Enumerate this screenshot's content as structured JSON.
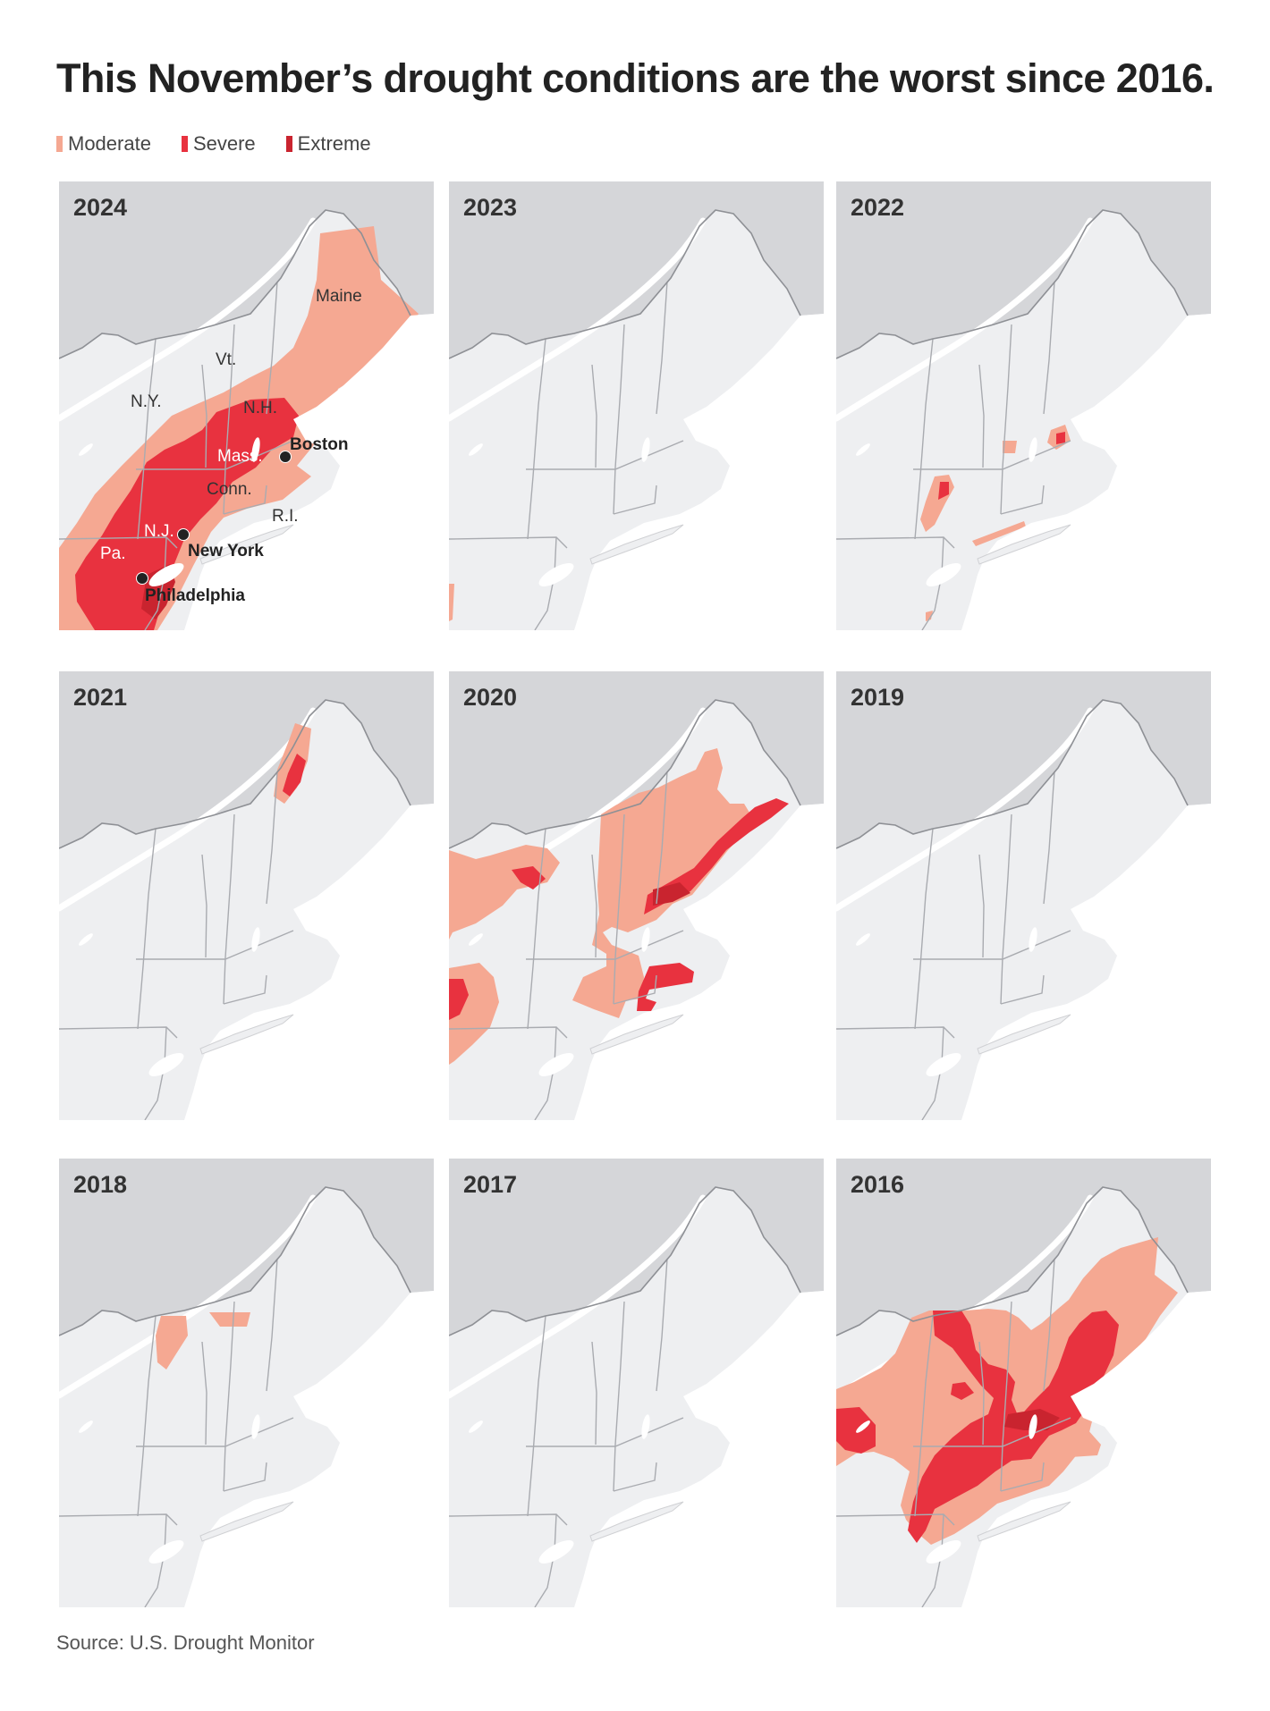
{
  "title": "This November’s drought conditions are the worst since 2016.",
  "legend": [
    {
      "label": "Moderate",
      "color": "#f5a892"
    },
    {
      "label": "Severe",
      "color": "#e8323f"
    },
    {
      "label": "Extreme",
      "color": "#c9242f"
    }
  ],
  "panels": [
    {
      "year": "2024"
    },
    {
      "year": "2023"
    },
    {
      "year": "2022"
    },
    {
      "year": "2021"
    },
    {
      "year": "2020"
    },
    {
      "year": "2019"
    },
    {
      "year": "2018"
    },
    {
      "year": "2017"
    },
    {
      "year": "2016"
    }
  ],
  "map_labels": {
    "maine": "Maine",
    "vt": "Vt.",
    "ny": "N.Y.",
    "nh": "N.H.",
    "mass": "Mass.",
    "boston": "Boston",
    "conn": "Conn.",
    "ri": "R.I.",
    "nj": "N.J.",
    "new_york": "New York",
    "pa": "Pa.",
    "philadelphia": "Philadelphia"
  },
  "source": "Source: U.S. Drought Monitor"
}
